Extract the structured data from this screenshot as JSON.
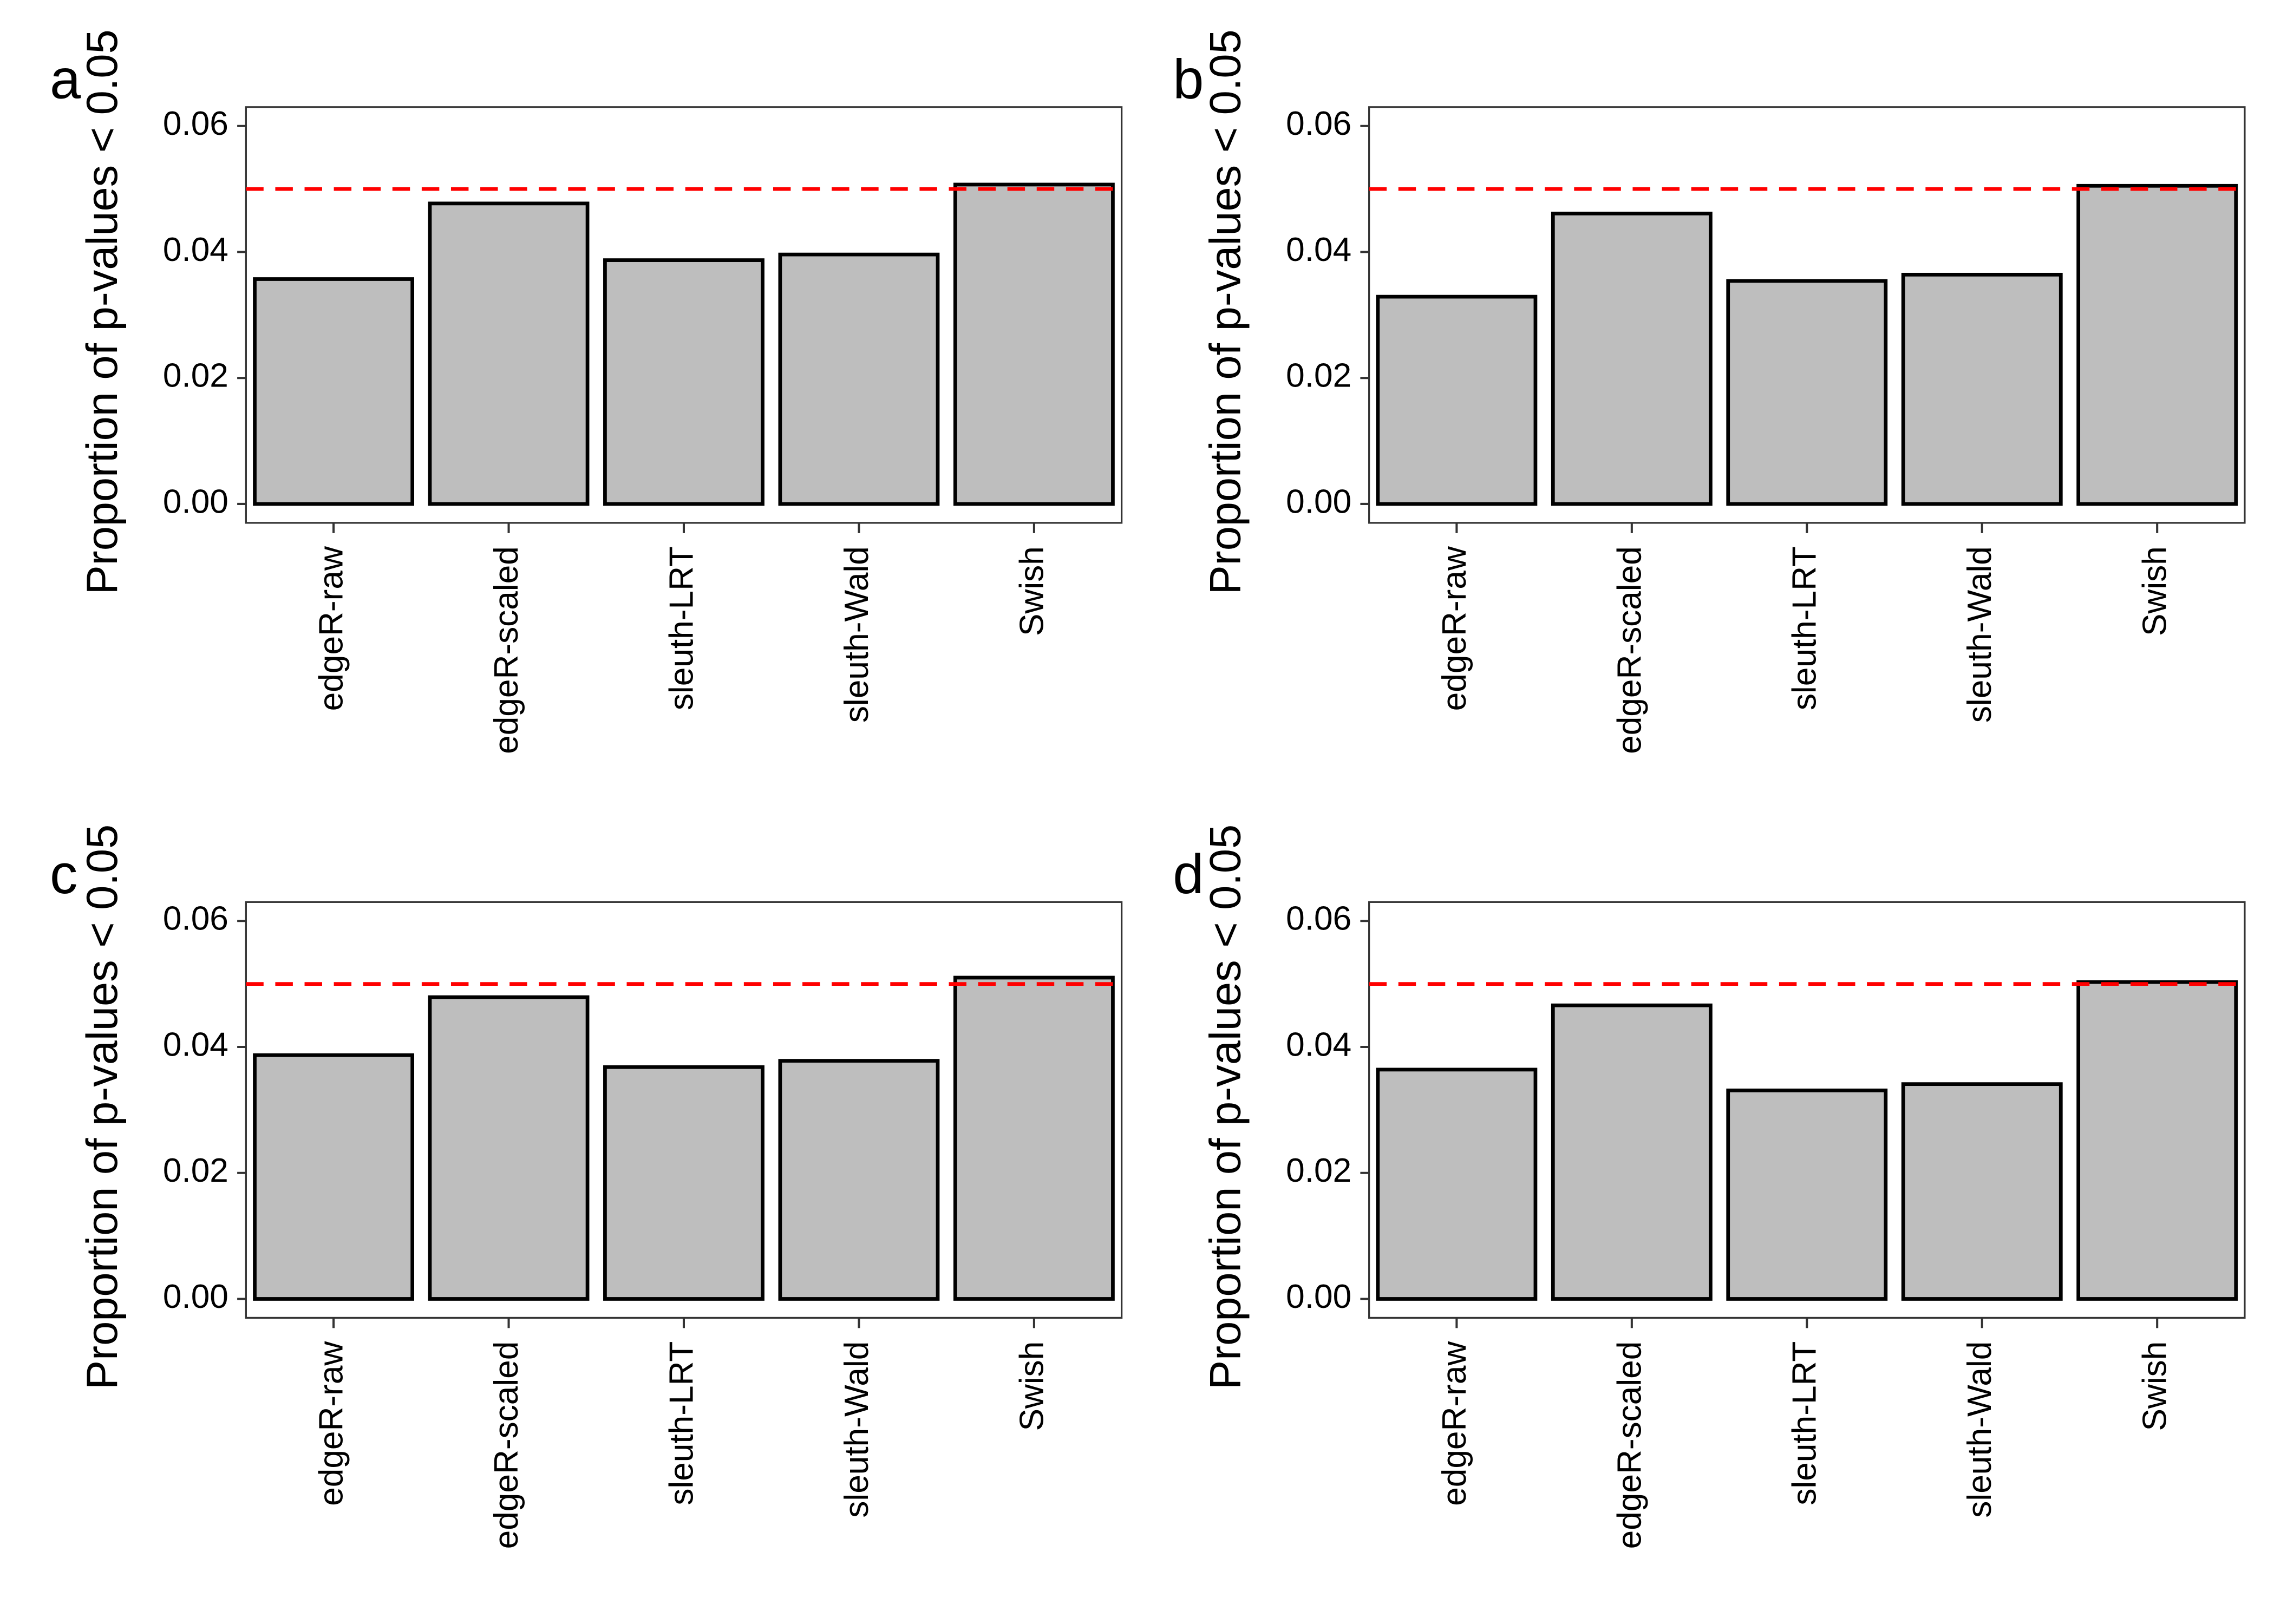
{
  "chart_data": [
    {
      "type": "bar",
      "panel": "a",
      "ylabel": "Proportion of p-values < 0.05",
      "categories": [
        "edgeR-raw",
        "edgeR-scaled",
        "sleuth-LRT",
        "sleuth-Wald",
        "Swish"
      ],
      "values": [
        0.0357,
        0.0477,
        0.0387,
        0.0396,
        0.0507
      ],
      "color": "#bebebe",
      "edge_color": "#000000",
      "hline": 0.05,
      "hline_color": "#ff0000",
      "ylim": [
        -0.003,
        0.063
      ],
      "yticks": [
        {
          "value": 0,
          "label": "0.00"
        },
        {
          "value": 0.02,
          "label": "0.02"
        },
        {
          "value": 0.04,
          "label": "0.04"
        },
        {
          "value": 0.06,
          "label": "0.06"
        }
      ]
    },
    {
      "type": "bar",
      "panel": "b",
      "ylabel": "Proportion of p-values < 0.05",
      "categories": [
        "edgeR-raw",
        "edgeR-scaled",
        "sleuth-LRT",
        "sleuth-Wald",
        "Swish"
      ],
      "values": [
        0.0329,
        0.0461,
        0.0354,
        0.0364,
        0.0505
      ],
      "color": "#bebebe",
      "edge_color": "#000000",
      "hline": 0.05,
      "hline_color": "#ff0000",
      "ylim": [
        -0.003,
        0.063
      ],
      "yticks": [
        {
          "value": 0,
          "label": "0.00"
        },
        {
          "value": 0.02,
          "label": "0.02"
        },
        {
          "value": 0.04,
          "label": "0.04"
        },
        {
          "value": 0.06,
          "label": "0.06"
        }
      ]
    },
    {
      "type": "bar",
      "panel": "c",
      "ylabel": "Proportion of p-values < 0.05",
      "categories": [
        "edgeR-raw",
        "edgeR-scaled",
        "sleuth-LRT",
        "sleuth-Wald",
        "Swish"
      ],
      "values": [
        0.0387,
        0.0479,
        0.0368,
        0.0378,
        0.051
      ],
      "color": "#bebebe",
      "edge_color": "#000000",
      "hline": 0.05,
      "hline_color": "#ff0000",
      "ylim": [
        -0.003,
        0.063
      ],
      "yticks": [
        {
          "value": 0,
          "label": "0.00"
        },
        {
          "value": 0.02,
          "label": "0.02"
        },
        {
          "value": 0.04,
          "label": "0.04"
        },
        {
          "value": 0.06,
          "label": "0.06"
        }
      ]
    },
    {
      "type": "bar",
      "panel": "d",
      "ylabel": "Proportion of p-values < 0.05",
      "categories": [
        "edgeR-raw",
        "edgeR-scaled",
        "sleuth-LRT",
        "sleuth-Wald",
        "Swish"
      ],
      "values": [
        0.0364,
        0.0466,
        0.0331,
        0.0341,
        0.0503
      ],
      "color": "#bebebe",
      "edge_color": "#000000",
      "hline": 0.05,
      "hline_color": "#ff0000",
      "ylim": [
        -0.003,
        0.063
      ],
      "yticks": [
        {
          "value": 0,
          "label": "0.00"
        },
        {
          "value": 0.02,
          "label": "0.02"
        },
        {
          "value": 0.04,
          "label": "0.04"
        },
        {
          "value": 0.06,
          "label": "0.06"
        }
      ]
    }
  ]
}
